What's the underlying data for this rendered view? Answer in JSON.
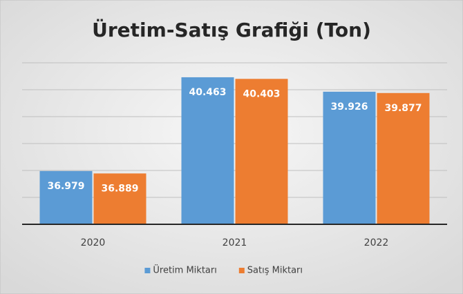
{
  "chart_data": {
    "type": "bar",
    "title": "Üretim-Satış Grafiği (Ton)",
    "categories": [
      "2020",
      "2021",
      "2022"
    ],
    "series": [
      {
        "name": "Üretim Miktarı",
        "color": "#5b9bd5",
        "values": [
          36979,
          40463,
          39926
        ],
        "value_labels": [
          "36.979",
          "40.463",
          "39.926"
        ]
      },
      {
        "name": "Satış Miktarı",
        "color": "#ed7d31",
        "values": [
          36889,
          40403,
          39877
        ],
        "value_labels": [
          "36.889",
          "40.403",
          "39.877"
        ]
      }
    ],
    "ylim": [
      35000,
      41000
    ],
    "yticks": [
      35000,
      36000,
      37000,
      38000,
      39000,
      40000,
      41000
    ],
    "grid": true,
    "legend": "bottom"
  }
}
